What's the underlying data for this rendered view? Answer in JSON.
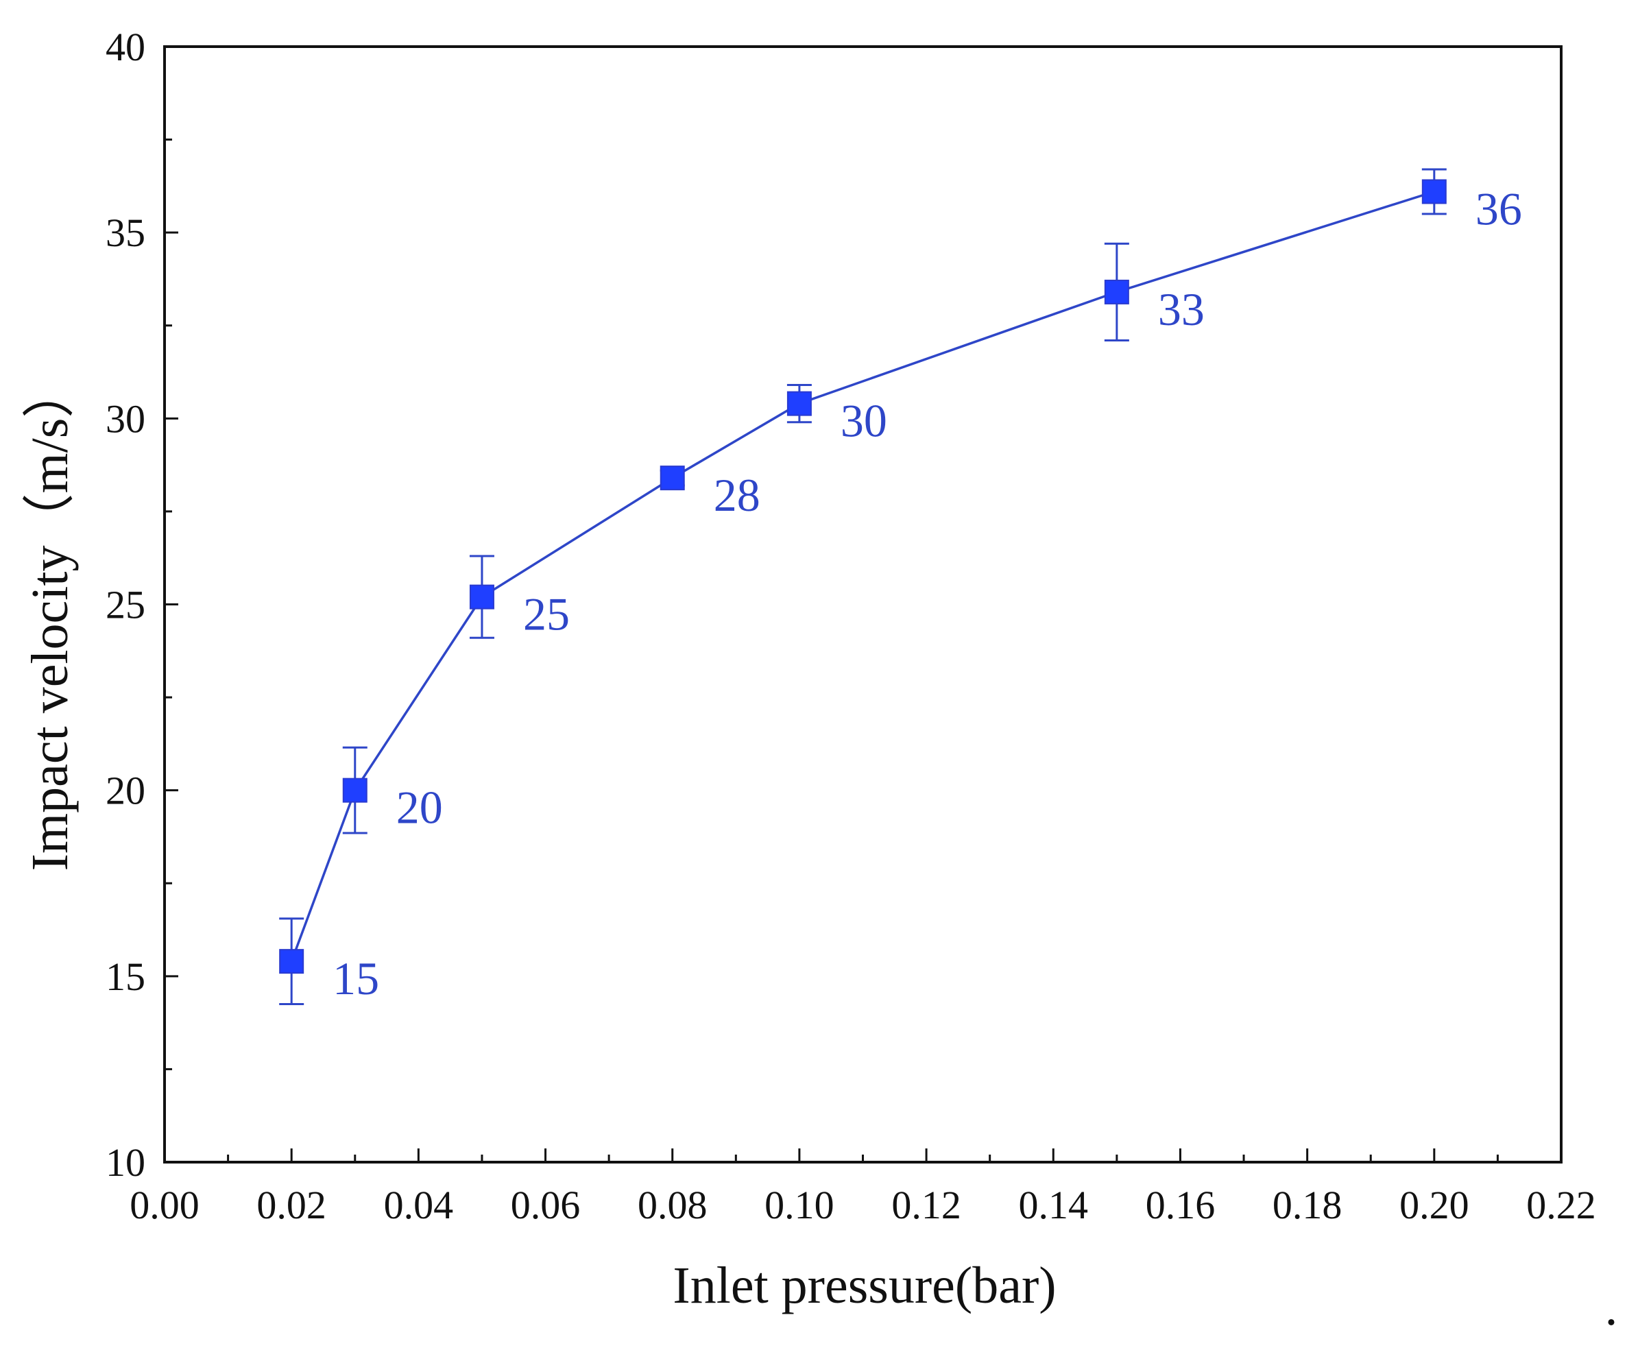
{
  "chart_data": {
    "type": "scatter",
    "title": "",
    "xlabel": "Inlet pressure(bar)",
    "ylabel": "Impact velocity（m/s）",
    "xlim": [
      0.0,
      0.22
    ],
    "ylim": [
      10,
      40
    ],
    "x_ticks": [
      0.0,
      0.02,
      0.04,
      0.06,
      0.08,
      0.1,
      0.12,
      0.14,
      0.16,
      0.18,
      0.2,
      0.22
    ],
    "x_tick_labels": [
      "0.00",
      "0.02",
      "0.04",
      "0.06",
      "0.08",
      "0.10",
      "0.12",
      "0.14",
      "0.16",
      "0.18",
      "0.20",
      "0.22"
    ],
    "y_ticks": [
      10,
      15,
      20,
      25,
      30,
      35,
      40
    ],
    "y_tick_labels": [
      "10",
      "15",
      "20",
      "25",
      "30",
      "35",
      "40"
    ],
    "grid": false,
    "legend": "none",
    "series": [
      {
        "color": "#1f3fff",
        "line_color": "#2e46c8",
        "marker": "square",
        "x": [
          0.02,
          0.03,
          0.05,
          0.08,
          0.1,
          0.15,
          0.2
        ],
        "y": [
          15.4,
          20.0,
          25.2,
          28.4,
          30.4,
          33.4,
          36.1
        ],
        "error": [
          1.15,
          1.15,
          1.1,
          0.2,
          0.5,
          1.3,
          0.6
        ],
        "data_labels": [
          "15",
          "20",
          "25",
          "28",
          "30",
          "33",
          "36"
        ]
      }
    ],
    "annotations": [
      "."
    ]
  }
}
